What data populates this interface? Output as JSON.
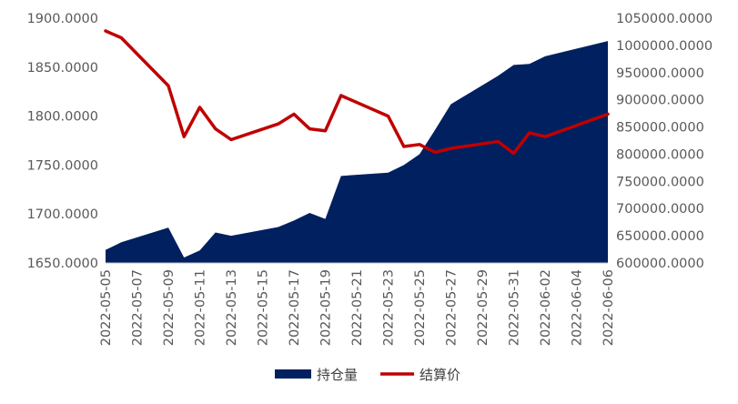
{
  "chart_data": {
    "type": "area",
    "x": [
      "2022-05-05",
      "2022-05-06",
      "2022-05-09",
      "2022-05-10",
      "2022-05-11",
      "2022-05-12",
      "2022-05-13",
      "2022-05-16",
      "2022-05-17",
      "2022-05-18",
      "2022-05-19",
      "2022-05-20",
      "2022-05-23",
      "2022-05-24",
      "2022-05-25",
      "2022-05-26",
      "2022-05-27",
      "2022-05-30",
      "2022-05-31",
      "2022-06-01",
      "2022-06-02",
      "2022-06-06"
    ],
    "x_tick_labels": [
      "2022-05-05",
      "2022-05-07",
      "2022-05-09",
      "2022-05-11",
      "2022-05-13",
      "2022-05-15",
      "2022-05-17",
      "2022-05-19",
      "2022-05-21",
      "2022-05-23",
      "2022-05-25",
      "2022-05-27",
      "2022-05-29",
      "2022-05-31",
      "2022-06-02",
      "2022-06-04",
      "2022-06-06"
    ],
    "x_range": [
      "2022-05-05",
      "2022-06-06"
    ],
    "left_axis": {
      "ticks": [
        "1650.0000",
        "1700.0000",
        "1750.0000",
        "1800.0000",
        "1850.0000",
        "1900.0000"
      ],
      "ylim": [
        1650,
        1900
      ]
    },
    "right_axis": {
      "ticks": [
        "600000.0000",
        "650000.0000",
        "700000.0000",
        "750000.0000",
        "800000.0000",
        "850000.0000",
        "900000.0000",
        "950000.0000",
        "1000000.0000",
        "1050000.0000"
      ],
      "ylim": [
        600000,
        1050000
      ]
    },
    "series": [
      {
        "name": "持仓量",
        "kind": "area",
        "axis": "right",
        "color": "#002060",
        "values": [
          624000,
          638000,
          665000,
          610000,
          623000,
          656000,
          650000,
          666000,
          678000,
          692000,
          681000,
          760000,
          766000,
          780000,
          800000,
          845000,
          892000,
          944000,
          964000,
          966000,
          980000,
          1008000
        ]
      },
      {
        "name": "结算价",
        "kind": "line",
        "axis": "left",
        "color": "#C00000",
        "values": [
          1887,
          1880,
          1831,
          1779,
          1809,
          1787,
          1776,
          1792,
          1802,
          1787,
          1785,
          1821,
          1800,
          1769,
          1771,
          1763,
          1767,
          1774,
          1762,
          1783,
          1779,
          1802
        ]
      }
    ],
    "legend": "bottom",
    "grid": false
  }
}
